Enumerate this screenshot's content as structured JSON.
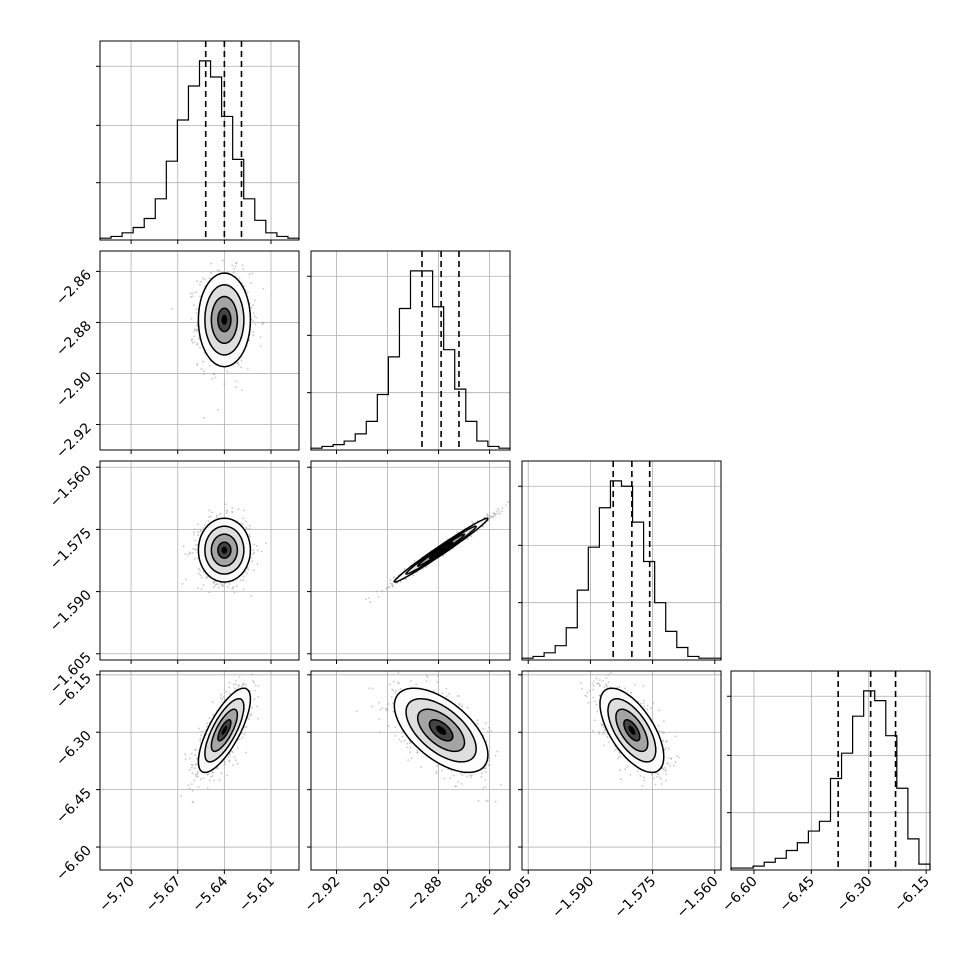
{
  "chart_data": {
    "type": "corner",
    "params": [
      {
        "range": [
          -5.72,
          -5.592
        ],
        "median": -5.64,
        "q16": -5.652,
        "q84": -5.629,
        "ticks": [
          -5.7,
          -5.67,
          -5.64,
          -5.61
        ],
        "tick_labels": [
          "−5.70",
          "−5.67",
          "−5.64",
          "−5.61"
        ]
      },
      {
        "range": [
          -2.93,
          -2.852
        ],
        "median": -2.879,
        "q16": -2.8865,
        "q84": -2.872,
        "ticks": [
          -2.92,
          -2.9,
          -2.88,
          -2.86
        ],
        "tick_labels": [
          "−2.92",
          "−2.90",
          "−2.88",
          "−2.86"
        ]
      },
      {
        "range": [
          -1.6065,
          -1.5585
        ],
        "median": -1.58,
        "q16": -1.5845,
        "q84": -1.5757,
        "ticks": [
          -1.605,
          -1.59,
          -1.575,
          -1.56
        ],
        "tick_labels": [
          "−1.605",
          "−1.590",
          "−1.575",
          "−1.560"
        ]
      },
      {
        "range": [
          -6.66,
          -6.14
        ],
        "median": -6.295,
        "q16": -6.38,
        "q84": -6.23,
        "ticks": [
          -6.6,
          -6.45,
          -6.3,
          -6.15
        ],
        "tick_labels": [
          "−6.60",
          "−6.45",
          "−6.30",
          "−6.15"
        ]
      }
    ],
    "histograms": [
      {
        "param": 0,
        "counts": [
          1,
          2,
          4,
          7,
          12,
          23,
          44,
          67,
          86,
          100,
          91,
          69,
          45,
          23,
          11,
          4,
          2,
          1
        ]
      },
      {
        "param": 1,
        "counts": [
          1,
          2,
          3,
          5,
          9,
          16,
          31,
          52,
          79,
          100,
          100,
          80,
          56,
          34,
          16,
          5,
          2,
          1
        ]
      },
      {
        "param": 2,
        "counts": [
          1,
          2,
          4,
          8,
          18,
          39,
          63,
          85,
          100,
          97,
          77,
          55,
          32,
          16,
          7,
          2,
          1,
          1
        ]
      },
      {
        "param": 3,
        "counts": [
          1,
          1,
          2,
          4,
          6,
          10,
          14,
          20,
          25,
          47,
          60,
          79,
          92,
          87,
          69,
          42,
          16,
          3
        ]
      }
    ],
    "pair_cov": {
      "1-0": [
        [
          7e-05,
          0.0
        ],
        [
          0.0,
          8.4e-05
        ]
      ],
      "2-0": [
        [
          7e-05,
          0.0
        ],
        [
          0.0,
          1.48e-05
        ]
      ],
      "2-1": [
        [
          8.4e-05,
          3.48e-05
        ],
        [
          3.48e-05,
          1.48e-05
        ]
      ],
      "3-0": [
        [
          7e-05,
          0.000343
        ],
        [
          0.000343,
          0.00303
        ]
      ],
      "3-1": [
        [
          8.4e-05,
          -0.000294
        ],
        [
          -0.000294,
          0.00303
        ]
      ],
      "3-2": [
        [
          1.48e-05,
          -0.000133
        ],
        [
          -0.000133,
          0.00303
        ]
      ]
    },
    "contour_levels": [
      0.5,
      1.0,
      1.5,
      2.0
    ],
    "colors": {
      "line": "#000000",
      "grid": "#b0b0b0",
      "points": "#9a9a9a",
      "density": "#000000"
    },
    "grid": true
  }
}
